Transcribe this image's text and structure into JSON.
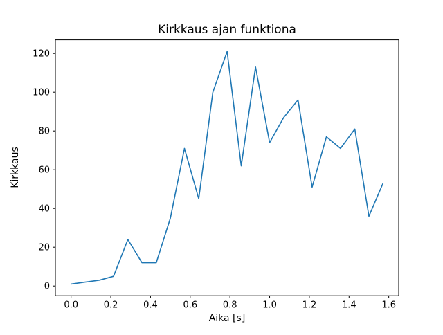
{
  "chart_data": {
    "type": "line",
    "title": "Kirkkaus ajan funktiona",
    "xlabel": "Aika [s]",
    "ylabel": "Kirkkaus",
    "x": [
      0.0,
      0.071,
      0.143,
      0.214,
      0.286,
      0.357,
      0.429,
      0.5,
      0.571,
      0.643,
      0.714,
      0.786,
      0.857,
      0.929,
      1.0,
      1.071,
      1.143,
      1.214,
      1.286,
      1.357,
      1.429,
      1.5,
      1.571
    ],
    "values": [
      1,
      2,
      3,
      5,
      24,
      12,
      12,
      35,
      71,
      45,
      100,
      121,
      62,
      113,
      74,
      87,
      96,
      51,
      77,
      71,
      81,
      36,
      53
    ],
    "xlim": [
      -0.079,
      1.65
    ],
    "ylim": [
      -5,
      127
    ],
    "xtick_values": [
      0.0,
      0.2,
      0.4,
      0.6,
      0.8,
      1.0,
      1.2,
      1.4,
      1.6
    ],
    "xtick_labels": [
      "0.0",
      "0.2",
      "0.4",
      "0.6",
      "0.8",
      "1.0",
      "1.2",
      "1.4",
      "1.6"
    ],
    "ytick_values": [
      0,
      20,
      40,
      60,
      80,
      100,
      120
    ],
    "ytick_labels": [
      "0",
      "20",
      "40",
      "60",
      "80",
      "100",
      "120"
    ],
    "line_color": "#1f77b4",
    "axis_color": "#000000",
    "background_color": "#ffffff",
    "grid": "off",
    "legend": "none"
  }
}
